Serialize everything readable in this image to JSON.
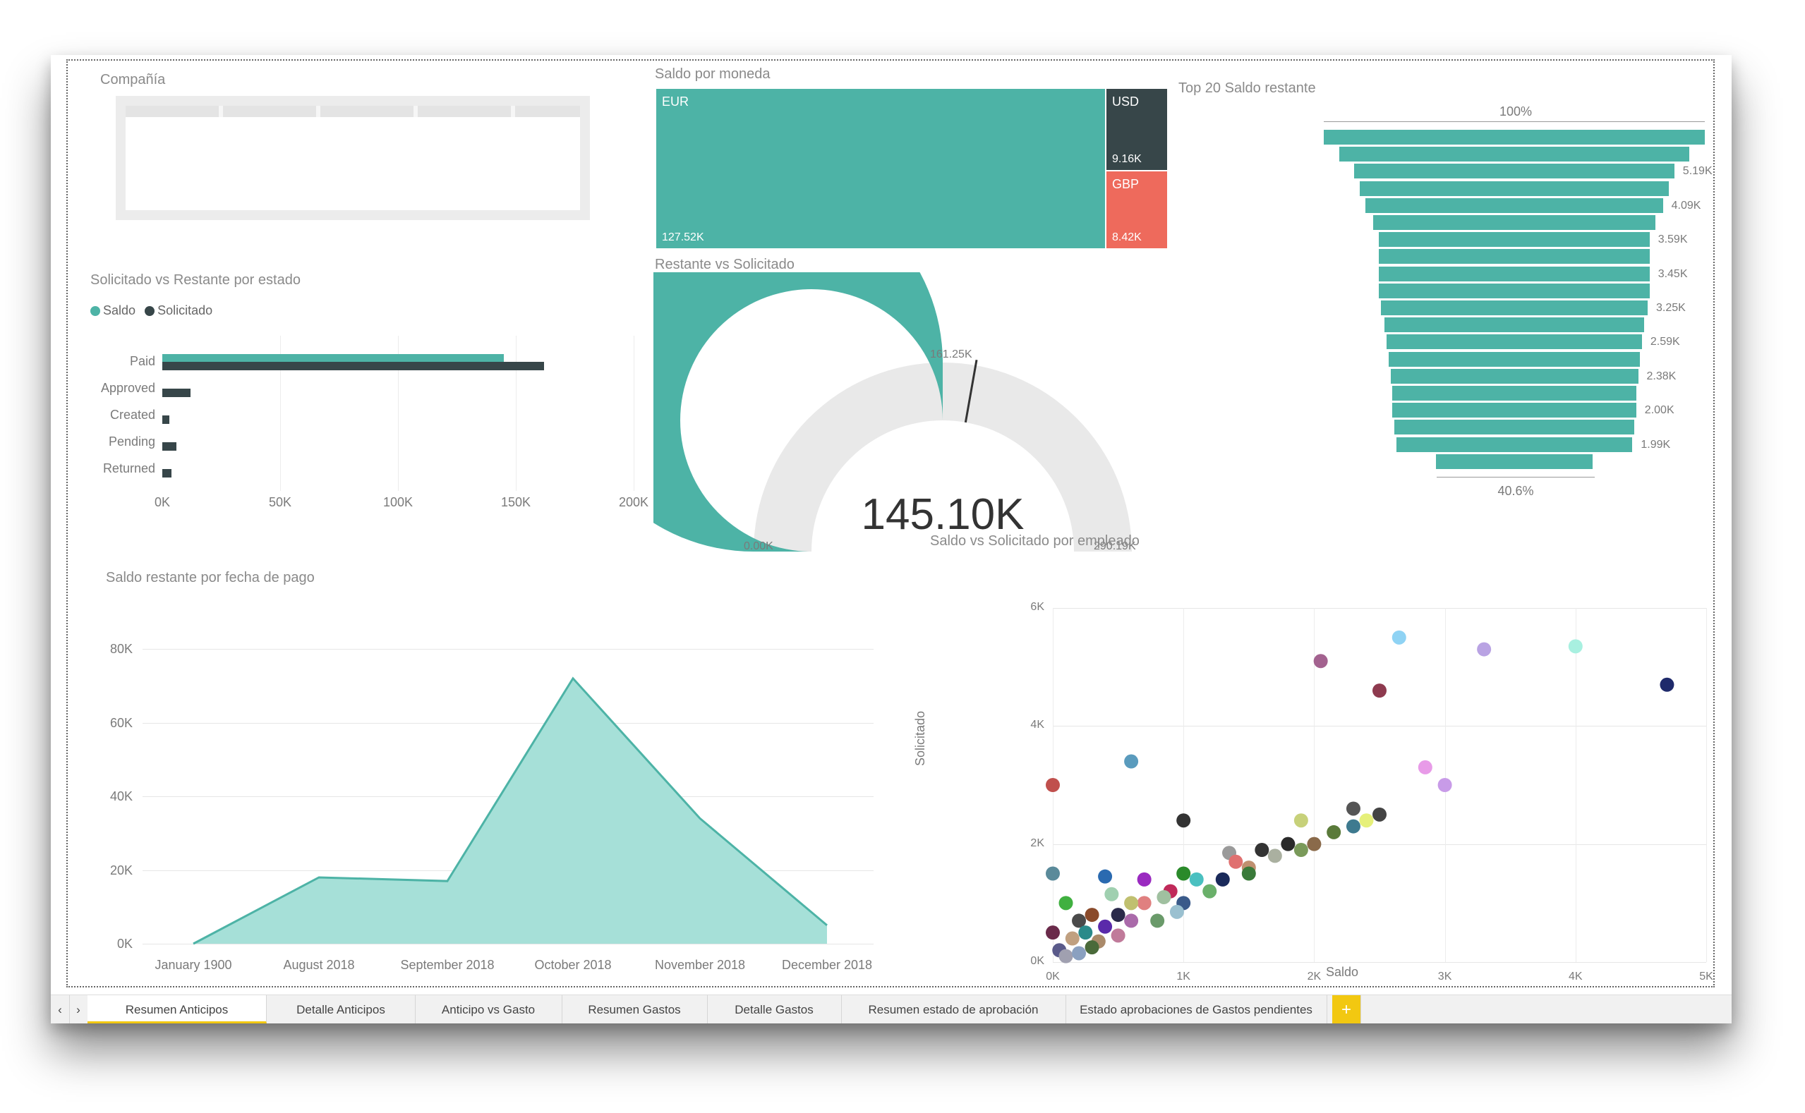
{
  "tabs": [
    {
      "label": "Resumen Anticipos",
      "active": true
    },
    {
      "label": "Detalle Anticipos",
      "active": false
    },
    {
      "label": "Anticipo vs Gasto",
      "active": false
    },
    {
      "label": "Resumen Gastos",
      "active": false
    },
    {
      "label": "Detalle Gastos",
      "active": false
    },
    {
      "label": "Resumen estado de aprobación",
      "active": false
    },
    {
      "label": "Estado aprobaciones de Gastos pendientes",
      "active": false
    }
  ],
  "add_tab_label": "+",
  "slicer": {
    "title": "Compañía"
  },
  "treemap": {
    "title": "Saldo por moneda",
    "cells": [
      {
        "label": "EUR",
        "value": "127.52K",
        "color": "#4db3a6"
      },
      {
        "label": "USD",
        "value": "9.16K",
        "color": "#374649"
      },
      {
        "label": "GBP",
        "value": "8.42K",
        "color": "#ee6a5c"
      }
    ]
  },
  "bar_chart": {
    "title": "Solicitado vs Restante por estado",
    "legend": [
      {
        "name": "Saldo",
        "color": "#4db3a6"
      },
      {
        "name": "Solicitado",
        "color": "#374649"
      }
    ],
    "chart_data": {
      "type": "bar",
      "orientation": "horizontal",
      "categories": [
        "Paid",
        "Approved",
        "Created",
        "Pending",
        "Returned"
      ],
      "series": [
        {
          "name": "Saldo",
          "values": [
            145,
            0,
            0,
            0,
            0
          ]
        },
        {
          "name": "Solicitado",
          "values": [
            162,
            12,
            3,
            6,
            4
          ]
        }
      ],
      "xticks": [
        "0K",
        "50K",
        "100K",
        "150K",
        "200K"
      ],
      "xlim": [
        0,
        200
      ]
    }
  },
  "gauge": {
    "title": "Restante vs Solicitado",
    "value_label": "145.10K",
    "min_label": "0.00K",
    "max_label": "290.19K",
    "target_label": "161.25K",
    "value": 145.1,
    "target": 161.25,
    "max": 290.19
  },
  "funnel": {
    "title": "Top 20 Saldo restante",
    "top_label": "100%",
    "bottom_label": "40.6%",
    "bar_labels": [
      "5.19K",
      "4.09K",
      "3.59K",
      "3.45K",
      "3.25K",
      "2.59K",
      "2.38K",
      "2.00K",
      "1.99K"
    ],
    "chart_data": {
      "type": "funnel",
      "values": [
        100,
        92,
        84,
        81,
        78,
        74,
        71,
        71,
        71,
        71,
        70,
        68,
        67,
        66,
        65,
        64,
        64,
        63,
        62,
        41
      ]
    }
  },
  "area_chart": {
    "title": "Saldo restante por fecha de pago",
    "chart_data": {
      "type": "area",
      "categories": [
        "January 1900",
        "August 2018",
        "September 2018",
        "October 2018",
        "November 2018",
        "December 2018"
      ],
      "x": [
        0,
        1,
        2,
        3,
        4,
        5
      ],
      "x_points": [
        0,
        1,
        2,
        3,
        4,
        5
      ],
      "y_points": [
        0,
        18,
        17,
        72,
        34,
        5
      ],
      "yticks": [
        "0K",
        "20K",
        "40K",
        "60K",
        "80K"
      ],
      "ylim": [
        0,
        80
      ]
    }
  },
  "scatter": {
    "title": "Saldo vs Solicitado por empleado",
    "xlabel": "Saldo",
    "ylabel": "Solicitado",
    "chart_data": {
      "type": "scatter",
      "xticks": [
        "0K",
        "1K",
        "2K",
        "3K",
        "4K",
        "5K"
      ],
      "yticks": [
        "0K",
        "2K",
        "4K",
        "6K"
      ],
      "xlim": [
        0,
        5
      ],
      "ylim": [
        0,
        6
      ],
      "points": [
        {
          "x": 2.65,
          "y": 5.5,
          "color": "#8fd3f4"
        },
        {
          "x": 3.3,
          "y": 5.3,
          "color": "#b9a3e3"
        },
        {
          "x": 4.0,
          "y": 5.35,
          "color": "#a8f0e0"
        },
        {
          "x": 4.7,
          "y": 4.7,
          "color": "#1f2a6b"
        },
        {
          "x": 2.05,
          "y": 5.1,
          "color": "#a3628f"
        },
        {
          "x": 2.5,
          "y": 4.6,
          "color": "#8e3a4f"
        },
        {
          "x": 0.6,
          "y": 3.4,
          "color": "#5a9bbd"
        },
        {
          "x": 0.0,
          "y": 3.0,
          "color": "#c0504d"
        },
        {
          "x": 2.85,
          "y": 3.3,
          "color": "#e89be8"
        },
        {
          "x": 3.0,
          "y": 3.0,
          "color": "#c89be8"
        },
        {
          "x": 1.0,
          "y": 2.4,
          "color": "#333333"
        },
        {
          "x": 2.3,
          "y": 2.6,
          "color": "#555555"
        },
        {
          "x": 2.5,
          "y": 2.5,
          "color": "#444444"
        },
        {
          "x": 1.9,
          "y": 2.4,
          "color": "#c7d17a"
        },
        {
          "x": 2.4,
          "y": 2.4,
          "color": "#e6f07a"
        },
        {
          "x": 2.3,
          "y": 2.3,
          "color": "#3e7a8f"
        },
        {
          "x": 2.15,
          "y": 2.2,
          "color": "#5a7a3a"
        },
        {
          "x": 2.0,
          "y": 2.0,
          "color": "#8a6a4a"
        },
        {
          "x": 1.8,
          "y": 2.0,
          "color": "#2a2a2a"
        },
        {
          "x": 1.9,
          "y": 1.9,
          "color": "#7a9a5a"
        },
        {
          "x": 1.7,
          "y": 1.8,
          "color": "#aab0a0"
        },
        {
          "x": 1.6,
          "y": 1.9,
          "color": "#333333"
        },
        {
          "x": 1.35,
          "y": 1.85,
          "color": "#9a9a9a"
        },
        {
          "x": 1.4,
          "y": 1.7,
          "color": "#e07070"
        },
        {
          "x": 1.5,
          "y": 1.6,
          "color": "#c09070"
        },
        {
          "x": 1.5,
          "y": 1.5,
          "color": "#3a7a3a"
        },
        {
          "x": 1.3,
          "y": 1.4,
          "color": "#1a2a5a"
        },
        {
          "x": 1.0,
          "y": 1.5,
          "color": "#2a8a2a"
        },
        {
          "x": 1.1,
          "y": 1.4,
          "color": "#4ac0c0"
        },
        {
          "x": 0.7,
          "y": 1.4,
          "color": "#9a2ac0"
        },
        {
          "x": 0.4,
          "y": 1.45,
          "color": "#2a6ab0"
        },
        {
          "x": 0.0,
          "y": 1.5,
          "color": "#5a8a9a"
        },
        {
          "x": 0.9,
          "y": 1.2,
          "color": "#c02a5a"
        },
        {
          "x": 1.2,
          "y": 1.2,
          "color": "#6ab06a"
        },
        {
          "x": 1.0,
          "y": 1.0,
          "color": "#3a5a8a"
        },
        {
          "x": 0.85,
          "y": 1.1,
          "color": "#a0c0a0"
        },
        {
          "x": 0.7,
          "y": 1.0,
          "color": "#e08080"
        },
        {
          "x": 0.6,
          "y": 1.0,
          "color": "#c0c070"
        },
        {
          "x": 0.45,
          "y": 1.15,
          "color": "#a0d0b0"
        },
        {
          "x": 0.1,
          "y": 1.0,
          "color": "#40b040"
        },
        {
          "x": 0.5,
          "y": 0.8,
          "color": "#2a2a4a"
        },
        {
          "x": 0.3,
          "y": 0.8,
          "color": "#8a4a2a"
        },
        {
          "x": 0.2,
          "y": 0.7,
          "color": "#4a4a4a"
        },
        {
          "x": 0.6,
          "y": 0.7,
          "color": "#aa6aaa"
        },
        {
          "x": 0.4,
          "y": 0.6,
          "color": "#5a2aaa"
        },
        {
          "x": 0.0,
          "y": 0.5,
          "color": "#6a2a4a"
        },
        {
          "x": 0.25,
          "y": 0.5,
          "color": "#2a8a8a"
        },
        {
          "x": 0.15,
          "y": 0.4,
          "color": "#c0a080"
        },
        {
          "x": 0.35,
          "y": 0.35,
          "color": "#aa8a6a"
        },
        {
          "x": 0.05,
          "y": 0.2,
          "color": "#5a5a8a"
        },
        {
          "x": 0.1,
          "y": 0.1,
          "color": "#a0a0b0"
        },
        {
          "x": 0.2,
          "y": 0.15,
          "color": "#8aa0c0"
        },
        {
          "x": 0.3,
          "y": 0.25,
          "color": "#4a6a3a"
        },
        {
          "x": 0.5,
          "y": 0.45,
          "color": "#c07a9a"
        },
        {
          "x": 0.8,
          "y": 0.7,
          "color": "#6a9a6a"
        },
        {
          "x": 0.95,
          "y": 0.85,
          "color": "#9ac0d0"
        }
      ]
    }
  }
}
